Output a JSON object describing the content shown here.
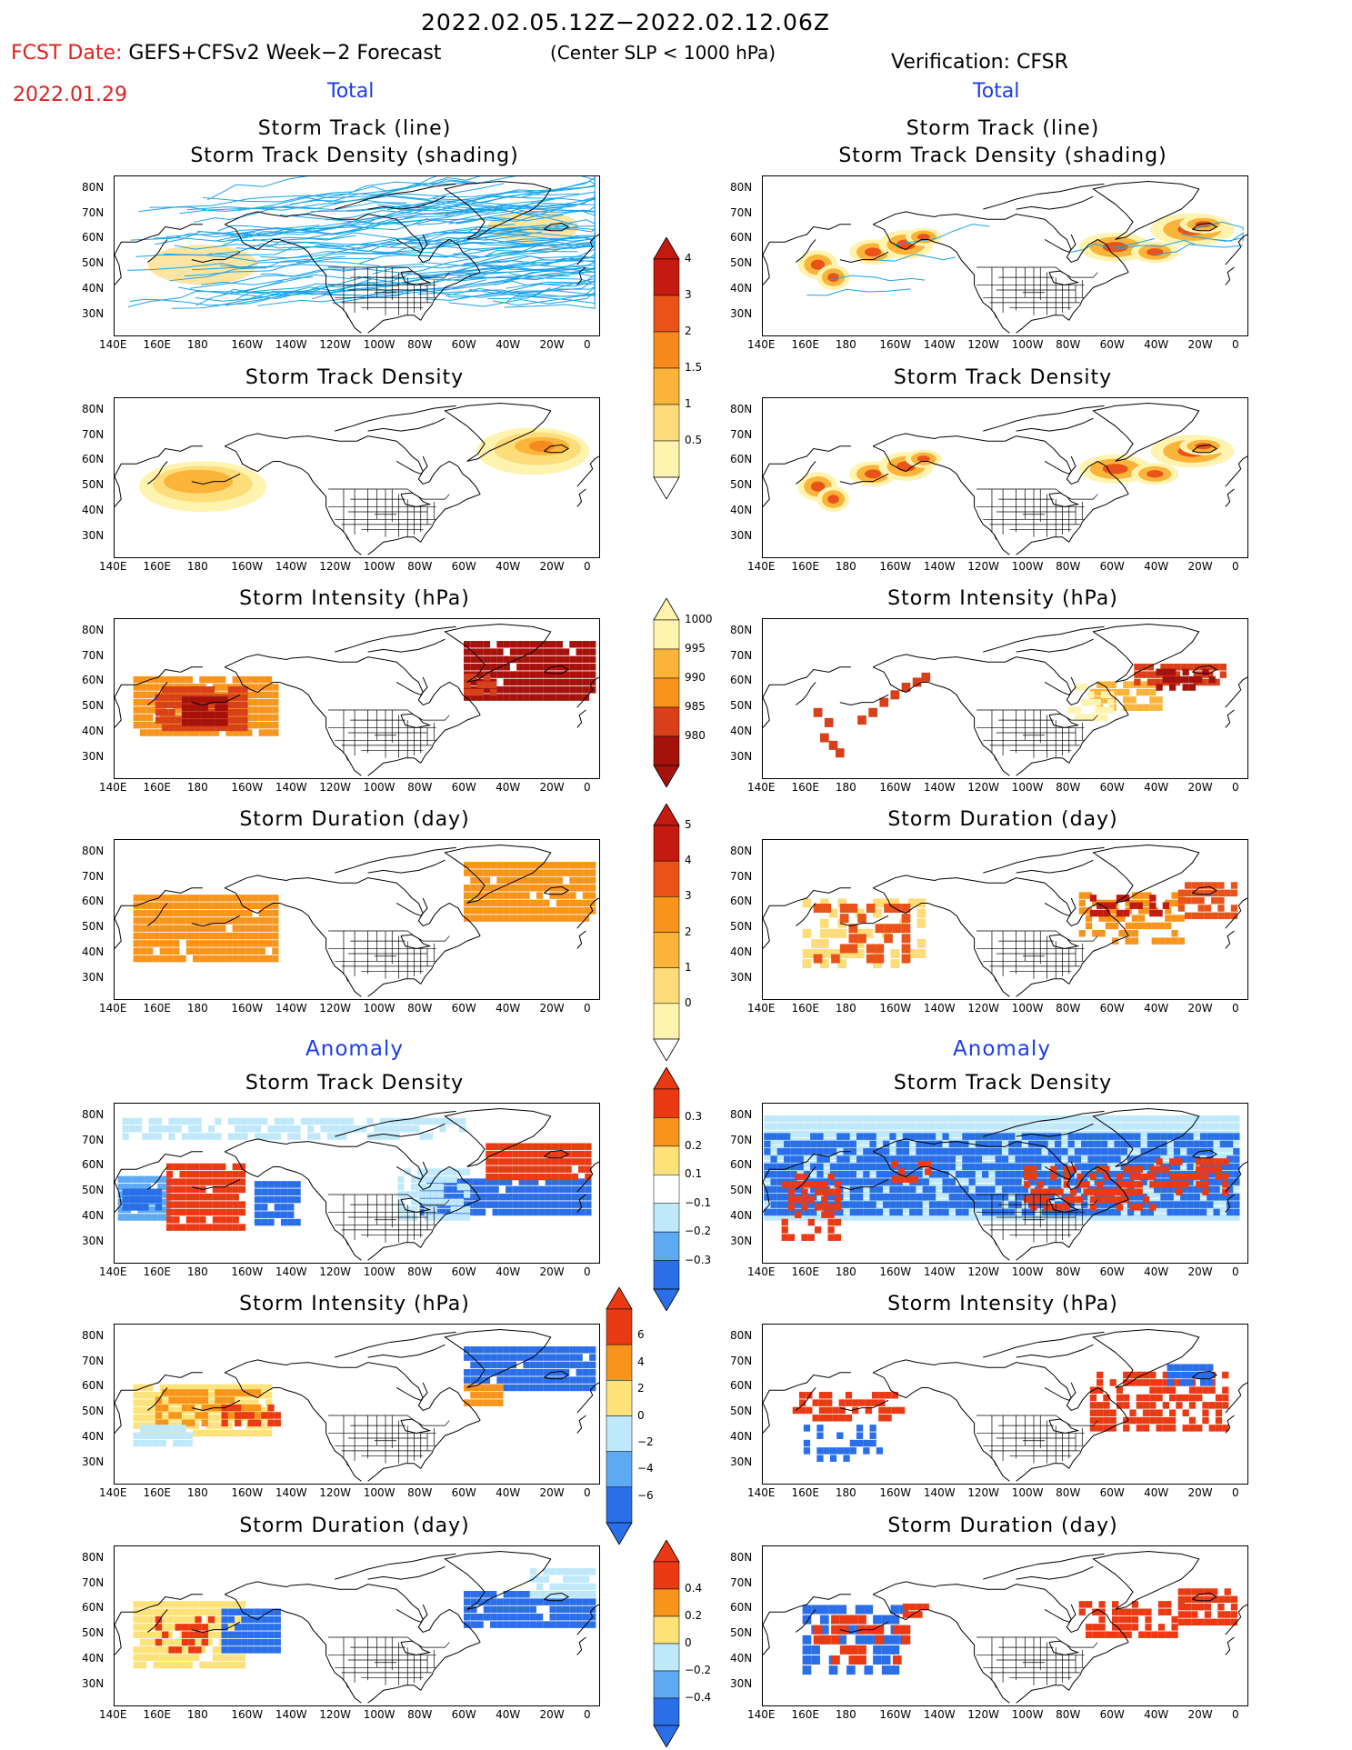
{
  "header": {
    "title": "2022.02.05.12Z−2022.02.12.06Z",
    "fcst_label": "FCST Date:",
    "fcst_date": "2022.01.29",
    "model": "GEFS+CFSv2 Week−2 Forecast",
    "condition": "(Center SLP < 1000 hPa)",
    "verification": "Verification: CFSR",
    "total_left": "Total",
    "total_right": "Total",
    "anomaly_left": "Anomaly",
    "anomaly_right": "Anomaly"
  },
  "panel_titles": {
    "track1": "Storm Track (line)",
    "track2": "Storm Track Density (shading)",
    "density": "Storm Track Density",
    "intensity": "Storm Intensity (hPa)",
    "duration": "Storm Duration (day)"
  },
  "axes": {
    "lon_labels": [
      "140E",
      "160E",
      "180",
      "160W",
      "140W",
      "120W",
      "100W",
      "80W",
      "60W",
      "40W",
      "20W",
      "0"
    ],
    "lat_labels": [
      "80N",
      "70N",
      "60N",
      "50N",
      "40N",
      "30N"
    ]
  },
  "colorbars": {
    "density_total": [
      "4",
      "3",
      "2",
      "1.5",
      "1",
      "0.5"
    ],
    "intensity_total": [
      "1000",
      "995",
      "990",
      "985",
      "980"
    ],
    "duration_total": [
      "5",
      "4",
      "3",
      "2",
      "1",
      "0"
    ],
    "density_anom": [
      "0.3",
      "0.2",
      "0.1",
      "−0.1",
      "−0.2",
      "−0.3"
    ],
    "intensity_anom": [
      "6",
      "4",
      "2",
      "0",
      "−2",
      "−4",
      "−6"
    ],
    "duration_anom": [
      "0.4",
      "0.2",
      "0",
      "−0.2",
      "−0.4"
    ]
  },
  "colors": {
    "track_line": "#1ba3e8",
    "density_scale": [
      "#fff3b0",
      "#fddc7a",
      "#fbb43a",
      "#f78a1c",
      "#e9531a",
      "#c41a10"
    ],
    "intensity_scale": [
      "#fff3b0",
      "#fbb43a",
      "#f7941c",
      "#d8401a",
      "#a5120c"
    ],
    "duration_scale": [
      "#fff3b0",
      "#fddc7a",
      "#fbb43a",
      "#f7941c",
      "#e9531a",
      "#c41a10"
    ],
    "anom_scale": [
      "#2a6ee8",
      "#5da9f2",
      "#bfe9fb",
      "#ffffff",
      "#fde27a",
      "#f7941c",
      "#ea3a14"
    ]
  }
}
